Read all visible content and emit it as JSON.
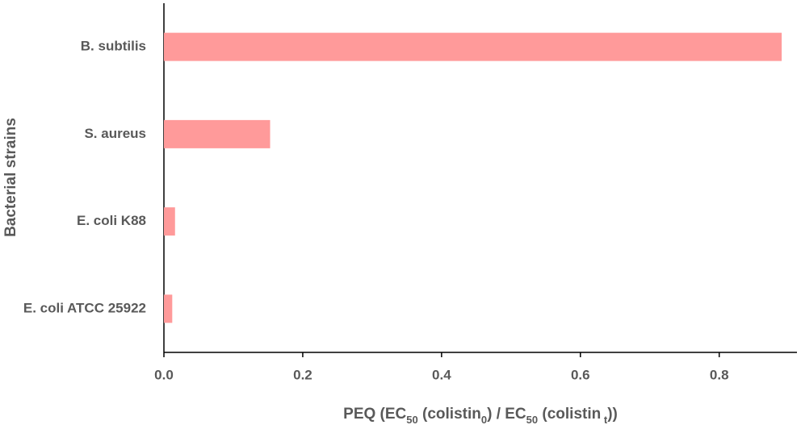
{
  "chart_data": {
    "type": "hbar",
    "categories": [
      "B. subtilis",
      "S. aureus",
      "E. coli K88",
      "E. coli ATCC 25922"
    ],
    "values": [
      0.89,
      0.153,
      0.016,
      0.012
    ],
    "color": "#ff9a9a",
    "xlim": [
      0,
      0.912
    ],
    "xticks": [
      {
        "value": 0,
        "label": "0.0"
      },
      0.2,
      0.4,
      0.6,
      0.8
    ],
    "ylabel": "Bacterial strains",
    "xlabel_parts": [
      {
        "text": "PEQ (EC"
      },
      {
        "text": "50",
        "sub": true
      },
      {
        "text": " (colistin"
      },
      {
        "text": "0",
        "sub": true
      },
      {
        "text": ") / EC"
      },
      {
        "text": "50",
        "sub": true
      },
      {
        "text": " (colistin"
      },
      {
        "text": " t",
        "sub": true
      },
      {
        "text": "))"
      }
    ],
    "grid": false
  }
}
